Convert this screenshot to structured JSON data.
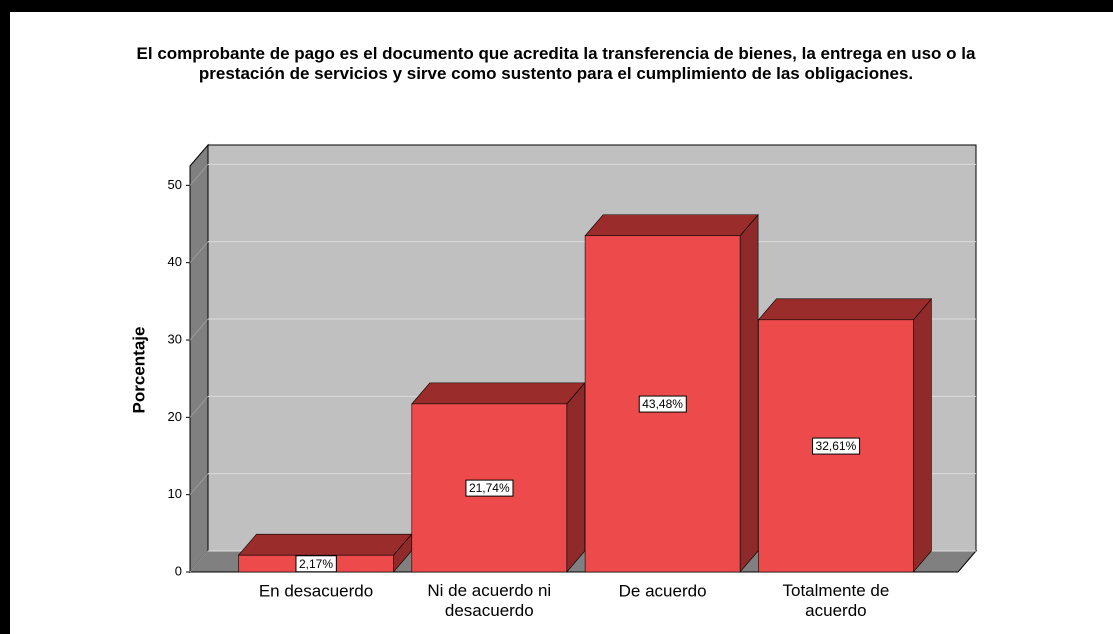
{
  "chart_data": {
    "type": "bar",
    "title": "El comprobante de pago es el documento que acredita la transferencia de bienes, la entrega en uso o la\nprestación de servicios y sirve como sustento para el cumplimiento de las obligaciones.",
    "y_label": "Porcentaje",
    "categories": [
      "En desacuerdo",
      "Ni de acuerdo ni\ndesacuerdo",
      "De acuerdo",
      "Totalmente de\nacuerdo"
    ],
    "values": [
      2.17,
      21.74,
      43.48,
      32.61
    ],
    "value_labels": [
      "2,17%",
      "21,74%",
      "43,48%",
      "32,61%"
    ],
    "color": "#ed4b4b",
    "ylim": [
      0,
      52.5
    ],
    "yticks": [
      0,
      10,
      20,
      30,
      40,
      50
    ],
    "grid": true
  }
}
